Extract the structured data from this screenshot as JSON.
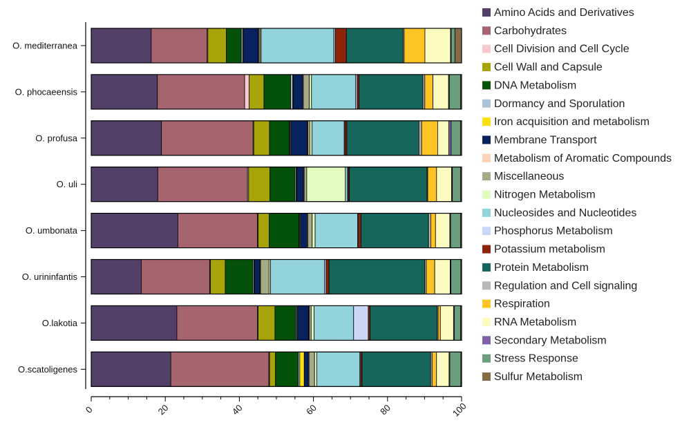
{
  "chart_data": {
    "type": "bar",
    "orientation": "horizontal",
    "stacked": true,
    "title": "",
    "xlabel": "",
    "ylabel": "",
    "xlim": [
      0,
      100
    ],
    "x_ticks": [
      "0",
      "20",
      "40",
      "60",
      "80",
      "100"
    ],
    "grid": false,
    "legend_position": "right",
    "categories": [
      "O. mediterranea",
      "O. phocaeensis",
      "O. profusa",
      "O. uli",
      "O. umbonata",
      "O. urininfantis",
      "O.lakotia",
      "O.scatoligenes"
    ],
    "series": [
      {
        "name": "Amino Acids and Derivatives",
        "color": "#524068",
        "values": [
          16.2,
          17.8,
          18.8,
          18.1,
          23.6,
          13.6,
          23.4,
          21.6
        ]
      },
      {
        "name": "Carbohydrates",
        "color": "#a5646e",
        "values": [
          15.1,
          23.5,
          24.5,
          24.4,
          21.7,
          18.6,
          22.0,
          26.6
        ]
      },
      {
        "name": "Cell Division and Cell Cycle",
        "color": "#f7c9cc",
        "values": [
          0.2,
          1.2,
          0.2,
          0.3,
          0.2,
          0.2,
          0.2,
          0.2
        ]
      },
      {
        "name": "Cell Wall and Capsule",
        "color": "#a7a40a",
        "values": [
          5.0,
          4.0,
          4.2,
          5.8,
          3.0,
          4.0,
          4.6,
          1.6
        ]
      },
      {
        "name": "DNA Metabolism",
        "color": "#04520a",
        "values": [
          4.0,
          7.2,
          5.3,
          6.8,
          8.1,
          7.5,
          5.7,
          6.2
        ]
      },
      {
        "name": "Dormancy and Sporulation",
        "color": "#a9c4d6",
        "values": [
          0.4,
          0.5,
          0.2,
          0.3,
          0.2,
          0.3,
          0.3,
          0.4
        ]
      },
      {
        "name": "Iron acquisition and metabolism",
        "color": "#fde014",
        "values": [
          0.2,
          0.2,
          0.2,
          0.2,
          0.2,
          0.2,
          0.2,
          1.2
        ]
      },
      {
        "name": "Membrane Transport",
        "color": "#082260",
        "values": [
          4.0,
          2.5,
          4.4,
          1.8,
          1.8,
          1.4,
          3.0,
          1.1
        ]
      },
      {
        "name": "Metabolism of Aromatic Compounds",
        "color": "#fbd4b8",
        "values": [
          0.2,
          0.2,
          0.2,
          0.2,
          0.2,
          0.2,
          0.2,
          0.2
        ]
      },
      {
        "name": "Miscellaneous",
        "color": "#a5ab84",
        "values": [
          0.3,
          1.6,
          0.5,
          0.7,
          1.2,
          2.3,
          0.5,
          1.5
        ]
      },
      {
        "name": "Nitrogen Metabolism",
        "color": "#e2fcc0",
        "values": [
          0.3,
          0.6,
          0.6,
          10.5,
          0.8,
          0.4,
          0.8,
          0.6
        ]
      },
      {
        "name": "Nucleosides and Nucleotides",
        "color": "#93d3dc",
        "values": [
          19.6,
          11.9,
          8.6,
          0.6,
          11.6,
          14.7,
          10.8,
          11.7
        ]
      },
      {
        "name": "Phosphorus Metabolism",
        "color": "#cbd6f7",
        "values": [
          0.4,
          0.4,
          0.2,
          0.2,
          0.2,
          0.4,
          4.0,
          0.2
        ]
      },
      {
        "name": "Potassium metabolism",
        "color": "#8c240a",
        "values": [
          3.0,
          0.5,
          0.5,
          0.3,
          0.7,
          0.8,
          0.5,
          0.4
        ]
      },
      {
        "name": "Protein Metabolism",
        "color": "#17665c",
        "values": [
          15.3,
          17.2,
          19.3,
          21.1,
          18.4,
          26.0,
          18.3,
          18.6
        ]
      },
      {
        "name": "Regulation and Cell signaling",
        "color": "#b8b8b8",
        "values": [
          0.3,
          0.5,
          0.7,
          0.2,
          0.6,
          0.4,
          0.3,
          0.4
        ]
      },
      {
        "name": "Respiration",
        "color": "#fdc423",
        "values": [
          5.6,
          2.2,
          4.3,
          2.4,
          1.3,
          2.3,
          0.6,
          1.2
        ]
      },
      {
        "name": "RNA Metabolism",
        "color": "#fdfcc0",
        "values": [
          6.9,
          4.2,
          3.0,
          4.1,
          3.9,
          4.2,
          3.6,
          3.4
        ]
      },
      {
        "name": "Secondary Metabolism",
        "color": "#7e64a4",
        "values": [
          0.2,
          0.2,
          0.6,
          0.2,
          0.2,
          0.2,
          0.2,
          0.2
        ]
      },
      {
        "name": "Stress Response",
        "color": "#6b9e7c",
        "values": [
          1.0,
          3.0,
          2.5,
          2.2,
          2.7,
          2.7,
          1.7,
          3.0
        ]
      },
      {
        "name": "Sulfur Metabolism",
        "color": "#836c4a",
        "values": [
          1.8,
          0.3,
          0.3,
          0.3,
          0.3,
          0.2,
          0.3,
          0.2
        ]
      }
    ]
  }
}
